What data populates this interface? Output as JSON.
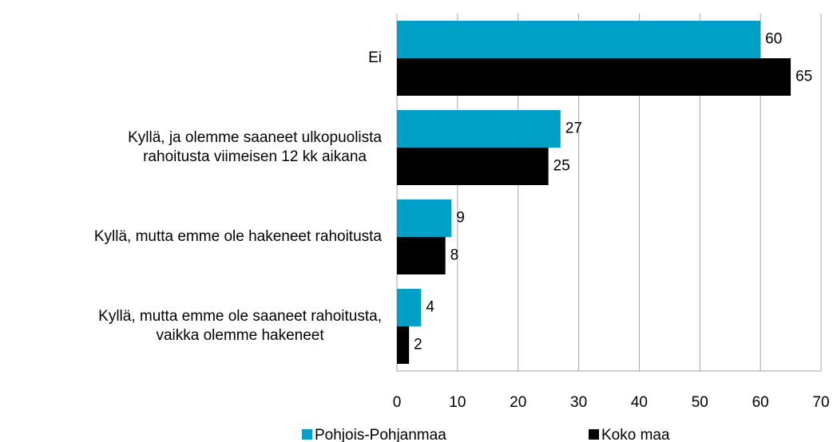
{
  "chart_data": {
    "type": "bar",
    "orientation": "horizontal",
    "categories": [
      "Ei",
      "Kyllä, ja olemme saaneet ulkopuolista\nrahoitusta viimeisen 12 kk aikana",
      "Kyllä, mutta emme ole hakeneet rahoitusta",
      "Kyllä, mutta emme ole saaneet rahoitusta,\nvaikka olemme hakeneet"
    ],
    "series": [
      {
        "name": "Pohjois-Pohjanmaa",
        "color": "#00a0c6",
        "values": [
          60,
          27,
          9,
          4
        ]
      },
      {
        "name": "Koko maa",
        "color": "#000000",
        "values": [
          65,
          25,
          8,
          2
        ]
      }
    ],
    "xlim": [
      0,
      70
    ],
    "xticks": [
      0,
      10,
      20,
      30,
      40,
      50,
      60,
      70
    ],
    "grid": true,
    "legend": "bottom"
  }
}
